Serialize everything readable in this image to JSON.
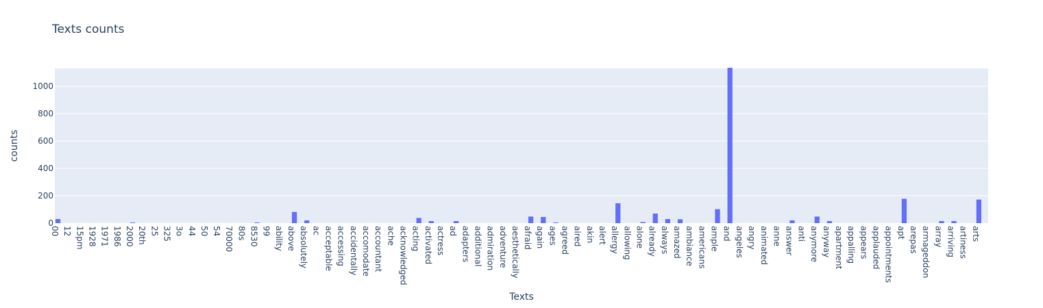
{
  "chart_data": {
    "type": "bar",
    "title": "Texts counts",
    "xlabel": "Texts",
    "ylabel": "counts",
    "ylim": [
      0,
      1130
    ],
    "yticks": [
      0,
      200,
      400,
      600,
      800,
      1000
    ],
    "grid": true,
    "bar_color": "#636efa",
    "plot_bg": "#e5ecf6",
    "categories": [
      "00",
      "12",
      "15pm",
      "1928",
      "1971",
      "1986",
      "2000",
      "20th",
      "25",
      "325",
      "3o",
      "44",
      "50",
      "54",
      "70000",
      "80s",
      "8530",
      "99",
      "ability",
      "above",
      "absolutely",
      "ac",
      "acceptable",
      "accessing",
      "accidentally",
      "accomodate",
      "accountant",
      "ache",
      "acknowledged",
      "acting",
      "activated",
      "actress",
      "ad",
      "adapters",
      "additional",
      "admiration",
      "adventure",
      "aesthetically",
      "afraid",
      "again",
      "ages",
      "agreed",
      "aired",
      "akin",
      "alert",
      "allergy",
      "allowing",
      "alone",
      "already",
      "always",
      "amazed",
      "ambiance",
      "americans",
      "ample",
      "and",
      "angeles",
      "angry",
      "animated",
      "anne",
      "answer",
      "anti",
      "anymore",
      "anyway",
      "apartment",
      "appalling",
      "appears",
      "applauded",
      "appointments",
      "apt",
      "arepas",
      "armageddon",
      "array",
      "arriving",
      "artiness",
      "arts"
    ],
    "values": [
      30,
      0,
      0,
      0,
      0,
      0,
      5,
      0,
      0,
      0,
      0,
      0,
      0,
      0,
      0,
      0,
      5,
      0,
      0,
      82,
      20,
      0,
      0,
      0,
      0,
      0,
      0,
      0,
      0,
      38,
      15,
      0,
      15,
      0,
      0,
      0,
      0,
      0,
      48,
      45,
      5,
      0,
      0,
      0,
      0,
      145,
      0,
      8,
      70,
      30,
      28,
      0,
      0,
      102,
      1135,
      0,
      0,
      0,
      0,
      20,
      0,
      48,
      15,
      0,
      0,
      0,
      0,
      0,
      178,
      0,
      0,
      15,
      15,
      0,
      172
    ]
  }
}
